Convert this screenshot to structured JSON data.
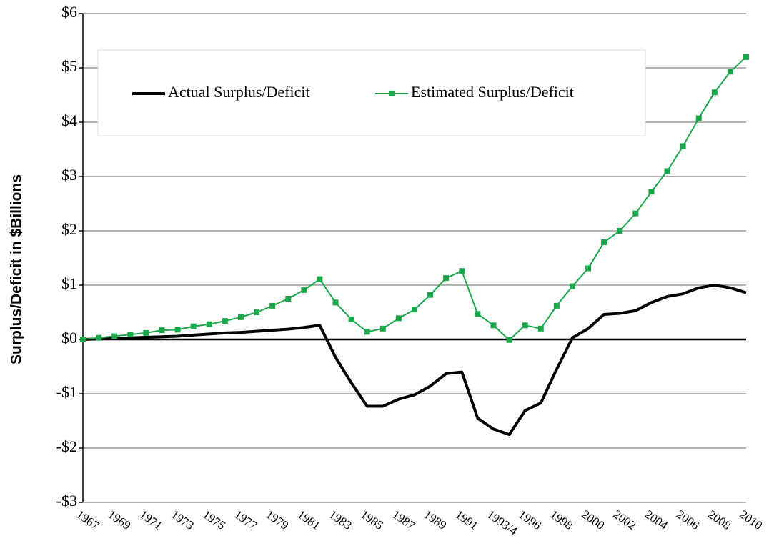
{
  "chart_data": {
    "type": "line",
    "y_label": "Surplus/Deficit in $Billions",
    "categories": [
      "1967",
      null,
      "1969",
      null,
      "1971",
      null,
      "1973",
      null,
      "1975",
      null,
      "1977",
      null,
      "1979",
      null,
      "1981",
      null,
      "1983",
      null,
      "1985",
      null,
      "1987",
      null,
      "1989",
      null,
      "1991",
      null,
      "1993/4",
      null,
      "1996",
      null,
      "1998",
      null,
      "2000",
      null,
      "2002",
      null,
      "2004",
      null,
      "2006",
      null,
      "2008",
      null,
      "2010"
    ],
    "series": [
      {
        "name": "Actual Surplus/Deficit",
        "color": "#000000",
        "markers": false,
        "values": [
          0,
          0.01,
          0.02,
          0.03,
          0.04,
          0.05,
          0.06,
          0.08,
          0.1,
          0.12,
          0.13,
          0.15,
          0.17,
          0.19,
          0.22,
          0.26,
          -0.33,
          -0.8,
          -1.23,
          -1.23,
          -1.1,
          -1.02,
          -0.86,
          -0.63,
          -0.6,
          -1.45,
          -1.65,
          -1.75,
          -1.31,
          -1.17,
          -0.55,
          0.03,
          0.2,
          0.46,
          0.48,
          0.53,
          0.68,
          0.79,
          0.84,
          0.95,
          1.0,
          0.95,
          0.86
        ]
      },
      {
        "name": "Estimated Surplus/Deficit",
        "color": "#1aa84b",
        "markers": true,
        "values": [
          0,
          0.03,
          0.06,
          0.09,
          0.12,
          0.17,
          0.18,
          0.24,
          0.28,
          0.34,
          0.41,
          0.5,
          0.62,
          0.75,
          0.91,
          1.11,
          0.68,
          0.37,
          0.14,
          0.2,
          0.39,
          0.55,
          0.82,
          1.13,
          1.26,
          0.47,
          0.26,
          -0.01,
          0.26,
          0.2,
          0.62,
          0.98,
          1.31,
          1.79,
          2.0,
          2.32,
          2.72,
          3.1,
          3.56,
          4.07,
          4.55,
          4.93,
          5.2
        ]
      }
    ],
    "ylim": [
      -3,
      6
    ],
    "yticks": [
      {
        "value": -3,
        "label": "-$3"
      },
      {
        "value": -2,
        "label": "-$2"
      },
      {
        "value": -1,
        "label": "-$1"
      },
      {
        "value": 0,
        "label": "$0"
      },
      {
        "value": 1,
        "label": "$1"
      },
      {
        "value": 2,
        "label": "$2"
      },
      {
        "value": 3,
        "label": "$3"
      },
      {
        "value": 4,
        "label": "$4"
      },
      {
        "value": 5,
        "label": "$5"
      },
      {
        "value": 6,
        "label": "$6"
      }
    ],
    "grid": true,
    "legend": "upper left"
  }
}
